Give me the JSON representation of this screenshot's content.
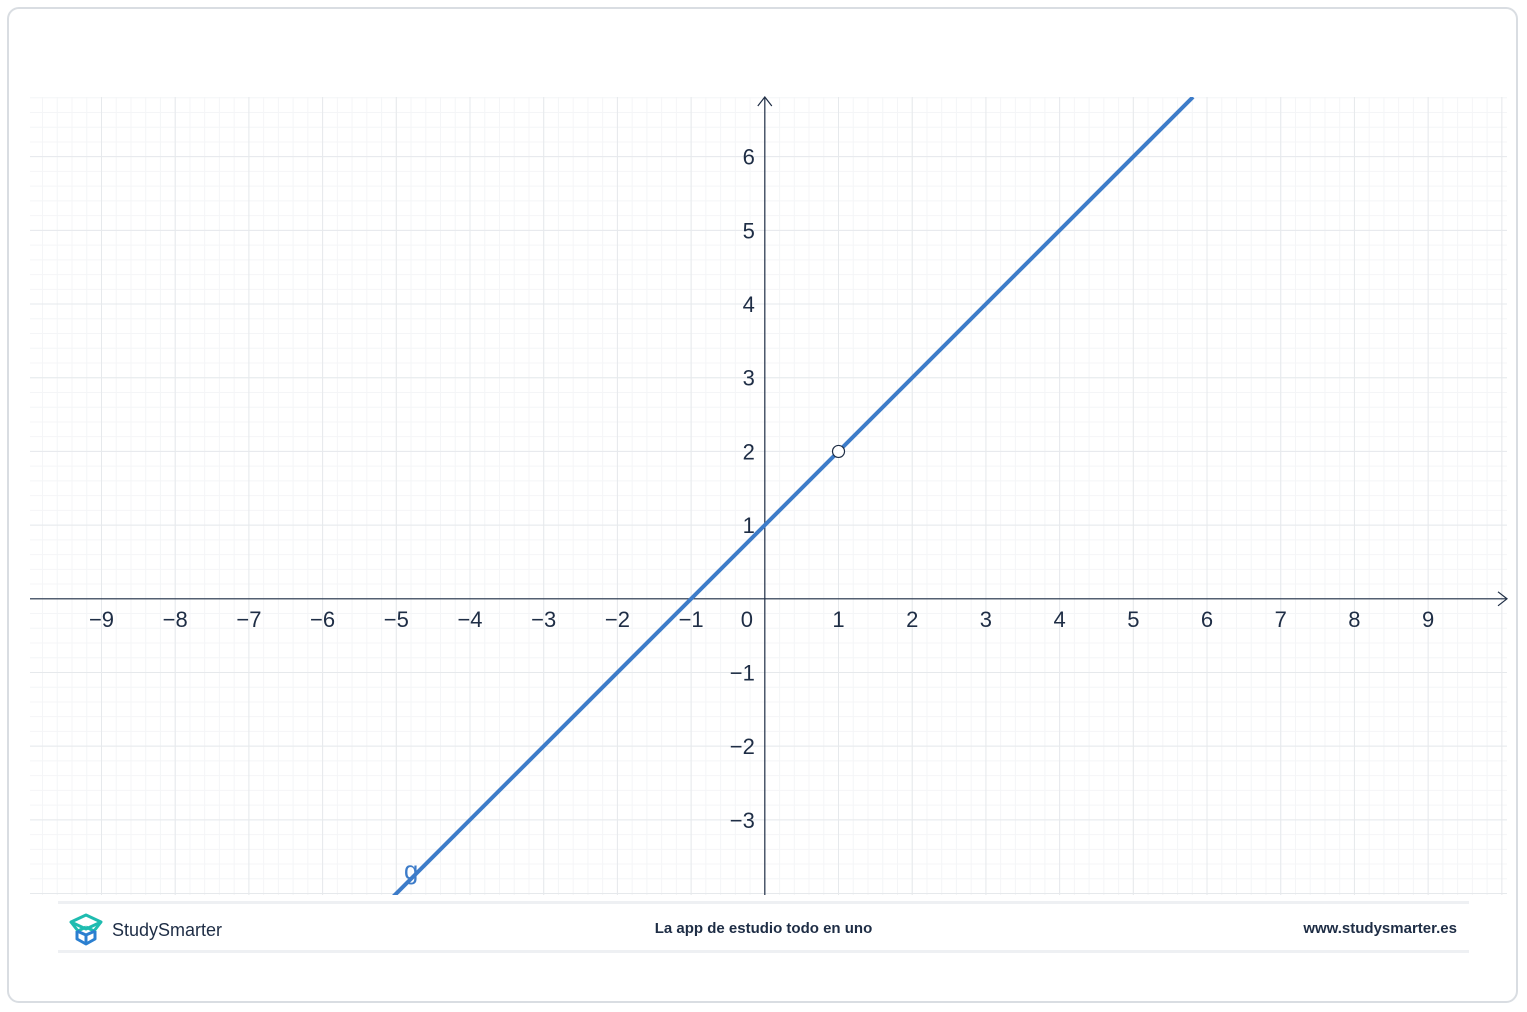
{
  "chart_data": {
    "type": "line",
    "title": "",
    "xlabel": "",
    "ylabel": "",
    "xlim": [
      -9.97,
      10.07
    ],
    "ylim": [
      -4.02,
      6.81
    ],
    "x_ticks": [
      -9,
      -8,
      -7,
      -6,
      -5,
      -4,
      -3,
      -2,
      -1,
      0,
      1,
      2,
      3,
      4,
      5,
      6,
      7,
      8,
      9
    ],
    "y_ticks": [
      -3,
      -2,
      -1,
      1,
      2,
      3,
      4,
      5,
      6
    ],
    "grid": true,
    "series": [
      {
        "name": "g",
        "equation": "y = x + 1",
        "color": "#3d7cc9",
        "points": [
          [
            -5.05,
            -4.05
          ],
          [
            5.81,
            6.81
          ]
        ]
      }
    ],
    "open_points": [
      [
        1,
        2
      ]
    ],
    "annotations": [
      {
        "text": "g",
        "x": -4.8,
        "y": -3.8
      }
    ]
  },
  "footer": {
    "brand": "StudySmarter",
    "tagline": "La app de estudio todo en uno",
    "url": "www.studysmarter.es"
  },
  "colors": {
    "axis": "#1e2d45",
    "line": "#3d7cc9",
    "grid": "#e6e9ec",
    "logo": "#1fbcb0"
  }
}
